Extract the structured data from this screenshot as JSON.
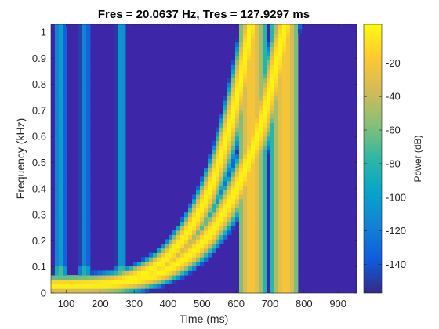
{
  "chart_data": {
    "type": "heatmap",
    "title": "Fres = 20.0637 Hz, Tres = 127.9297 ms",
    "xlabel": "Time (ms)",
    "ylabel": "Frequency (kHz)",
    "xlim": [
      55,
      955
    ],
    "ylim": [
      0,
      1.03
    ],
    "x_ticks": [
      100,
      200,
      300,
      400,
      500,
      600,
      700,
      800,
      900
    ],
    "x_tick_labels": [
      "100",
      "200",
      "300",
      "400",
      "500",
      "600",
      "700",
      "800",
      "900"
    ],
    "y_ticks": [
      0,
      0.1,
      0.2,
      0.3,
      0.4,
      0.5,
      0.6,
      0.7,
      0.8,
      0.9,
      1
    ],
    "y_tick_labels": [
      "0",
      "0.1",
      "0.2",
      "0.3",
      "0.4",
      "0.5",
      "0.6",
      "0.7",
      "0.8",
      "0.9",
      "1"
    ],
    "colorbar": {
      "label": "Power (dB)",
      "range": [
        -157,
        3
      ],
      "ticks": [
        -140,
        -120,
        -100,
        -80,
        -60,
        -40,
        -20
      ],
      "tick_labels": [
        "-140",
        "-120",
        "-100",
        "-80",
        "-60",
        "-40",
        "-20"
      ],
      "colormap": "parula"
    },
    "grid": false,
    "components": [
      {
        "kind": "impulse",
        "time_ms": 82,
        "freq_range_khz": [
          0,
          1.03
        ],
        "peak_db": -100
      },
      {
        "kind": "impulse",
        "time_ms": 155,
        "freq_range_khz": [
          0,
          1.03
        ],
        "peak_db": -115
      },
      {
        "kind": "impulse",
        "time_ms": 262,
        "freq_range_khz": [
          0,
          1.03
        ],
        "peak_db": -100
      },
      {
        "kind": "chirp",
        "description": "frequency rises from ~0.03 kHz at 70 ms to above 1 kHz at ~640 ms",
        "peak_db": 0
      },
      {
        "kind": "chirp",
        "description": "frequency rises from ~0.03 kHz at 70 ms to above 1 kHz at ~740 ms",
        "peak_db": 0
      }
    ]
  },
  "colors": {
    "background": "#3e26a8",
    "parula": [
      "#352a87",
      "#0f5cdd",
      "#1481d6",
      "#06a4ca",
      "#2eb7a4",
      "#87bf77",
      "#d1bb59",
      "#fec832",
      "#f9fb0e"
    ]
  }
}
